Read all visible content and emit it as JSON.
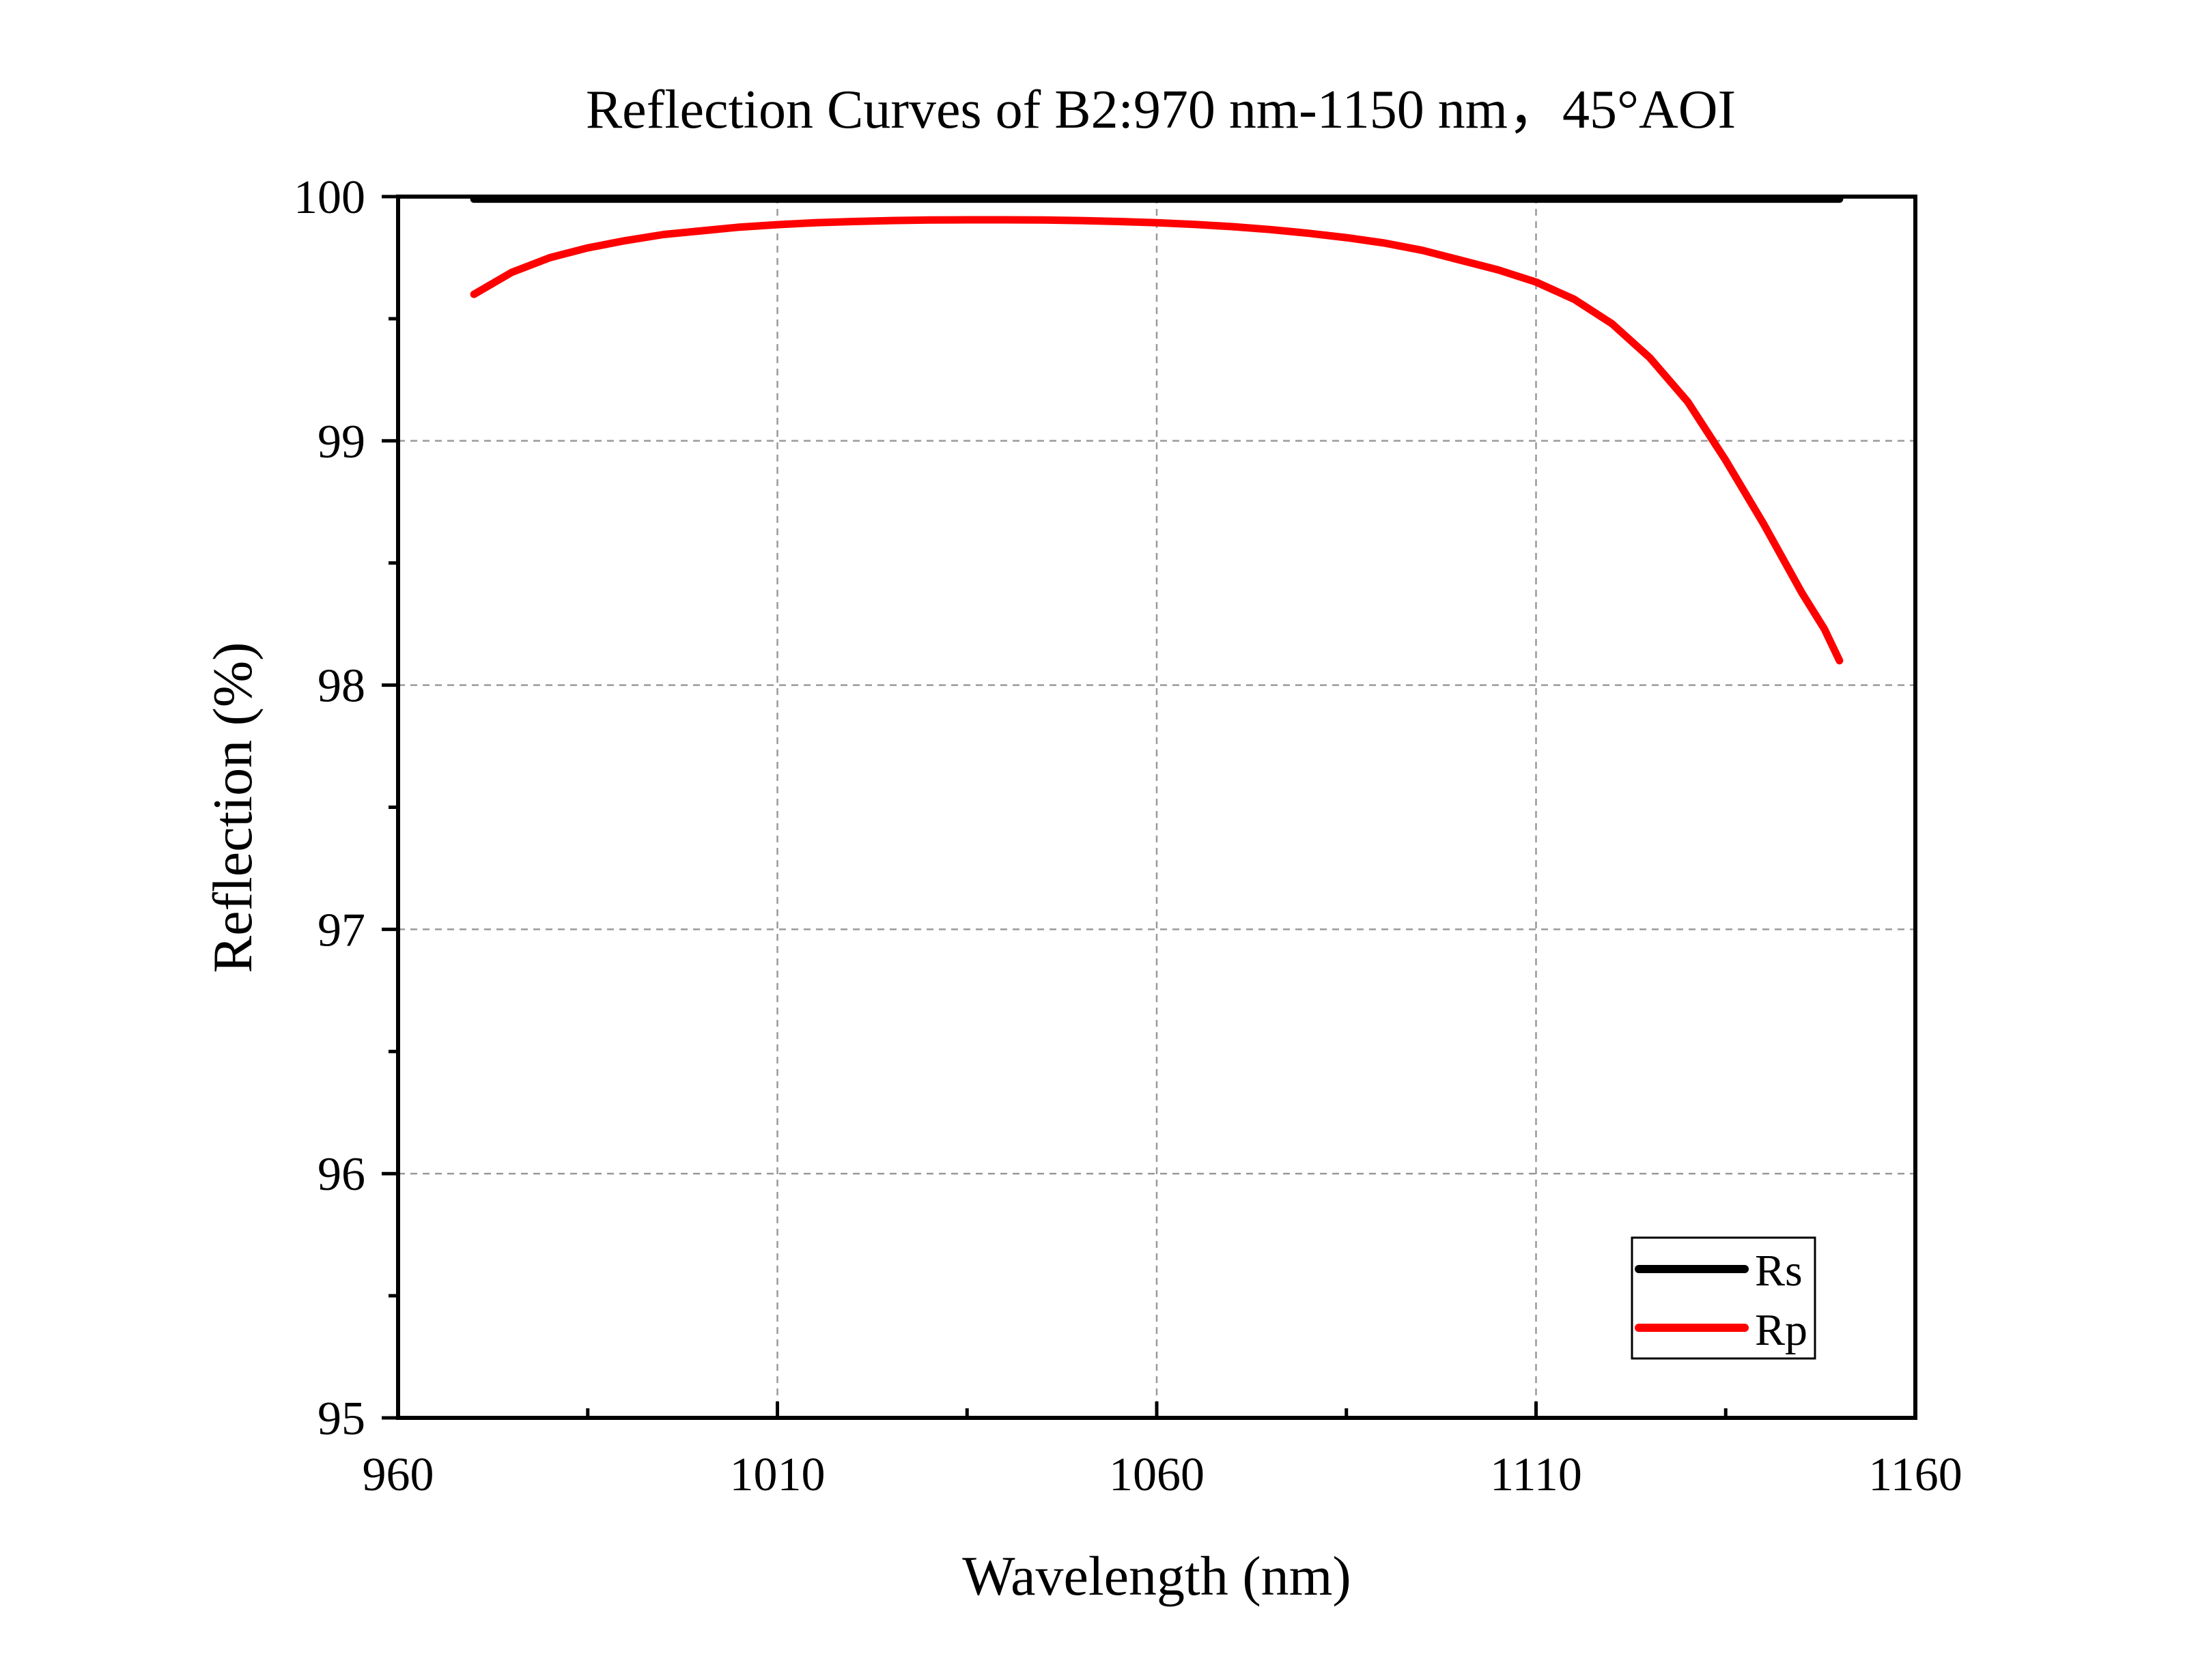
{
  "chart_data": {
    "type": "line",
    "title": "Reflection Curves of B2:970 nm-1150 nm，45°AOI",
    "xlabel": "Wavelength (nm)",
    "ylabel": "Reflection (%)",
    "xlim": [
      960,
      1160
    ],
    "ylim": [
      95,
      100
    ],
    "xticks": [
      960,
      1010,
      1060,
      1110,
      1160
    ],
    "yticks": [
      95,
      96,
      97,
      98,
      99,
      100
    ],
    "x_minor_step": 25,
    "y_minor_step": 0.5,
    "grid": true,
    "legend_position": "bottom-right",
    "series": [
      {
        "name": "Rs",
        "color": "#000000",
        "x": [
          970,
          990,
          1010,
          1030,
          1050,
          1070,
          1090,
          1110,
          1130,
          1150
        ],
        "y": [
          99.99,
          99.99,
          99.99,
          99.99,
          99.99,
          99.99,
          99.99,
          99.99,
          99.99,
          99.99
        ]
      },
      {
        "name": "Rp",
        "color": "#ff0000",
        "x": [
          970,
          975,
          980,
          985,
          990,
          995,
          1000,
          1005,
          1010,
          1015,
          1020,
          1025,
          1030,
          1035,
          1040,
          1045,
          1050,
          1055,
          1060,
          1065,
          1070,
          1075,
          1080,
          1085,
          1090,
          1095,
          1100,
          1105,
          1110,
          1115,
          1120,
          1125,
          1130,
          1135,
          1140,
          1145,
          1148,
          1150
        ],
        "y": [
          99.6,
          99.69,
          99.75,
          99.79,
          99.82,
          99.845,
          99.86,
          99.875,
          99.885,
          99.893,
          99.898,
          99.902,
          99.904,
          99.905,
          99.905,
          99.904,
          99.902,
          99.898,
          99.893,
          99.886,
          99.877,
          99.865,
          99.85,
          99.832,
          99.81,
          99.78,
          99.74,
          99.7,
          99.65,
          99.58,
          99.48,
          99.34,
          99.16,
          98.92,
          98.66,
          98.38,
          98.23,
          98.1
        ]
      }
    ]
  }
}
